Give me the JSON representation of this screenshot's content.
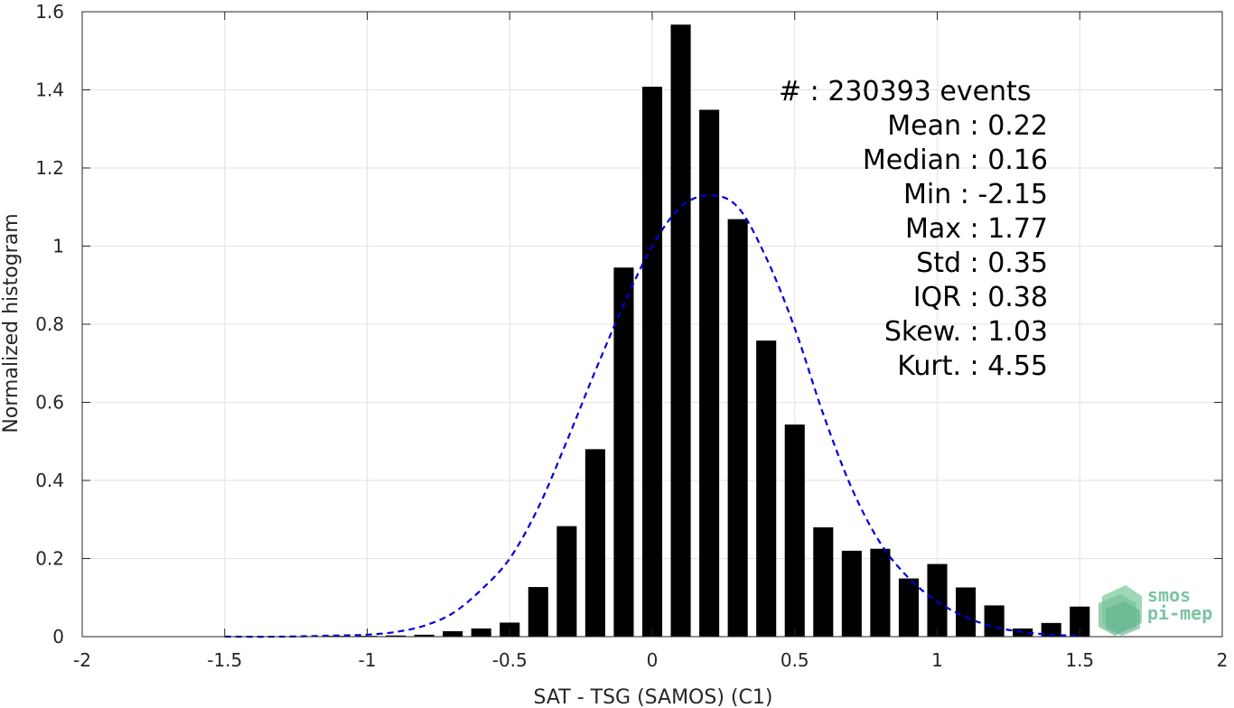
{
  "chart_data": {
    "type": "bar",
    "xlabel": "SAT - TSG (SAMOS) (C1)",
    "ylabel": "Normalized histogram",
    "xlim": [
      -2,
      2
    ],
    "ylim": [
      0,
      1.6
    ],
    "grid": true,
    "xticks": [
      -2,
      -1.5,
      -1,
      -0.5,
      0,
      0.5,
      1,
      1.5,
      2
    ],
    "xtick_labels": [
      "-2",
      "-1.5",
      "-1",
      "-0.5",
      "0",
      "0.5",
      "1",
      "1.5",
      "2"
    ],
    "yticks": [
      0,
      0.2,
      0.4,
      0.6,
      0.8,
      1,
      1.2,
      1.4,
      1.6
    ],
    "ytick_labels": [
      "0",
      "0.2",
      "0.4",
      "0.6",
      "0.8",
      "1",
      "1.2",
      "1.4",
      "1.6"
    ],
    "bar_color": "#000000",
    "bar_width": 0.07,
    "series": [
      {
        "type": "bar",
        "x": [
          -1.5,
          -1.4,
          -1.3,
          -1.2,
          -1.1,
          -1.0,
          -0.9,
          -0.8,
          -0.7,
          -0.6,
          -0.5,
          -0.4,
          -0.3,
          -0.2,
          -0.1,
          0.0,
          0.1,
          0.2,
          0.3,
          0.4,
          0.5,
          0.6,
          0.7,
          0.8,
          0.9,
          1.0,
          1.1,
          1.2,
          1.3,
          1.4,
          1.5
        ],
        "values": [
          0.001,
          0.001,
          0.001,
          0.001,
          0.002,
          0.002,
          0.003,
          0.005,
          0.014,
          0.021,
          0.036,
          0.127,
          0.283,
          0.48,
          0.945,
          1.408,
          1.567,
          1.349,
          1.069,
          0.758,
          0.543,
          0.28,
          0.22,
          0.225,
          0.149,
          0.186,
          0.126,
          0.08,
          0.021,
          0.035,
          0.077
        ]
      },
      {
        "type": "line",
        "style": "dashed",
        "color": "#0000dd",
        "x": [
          -1.5,
          -1.3,
          -1.1,
          -1.0,
          -0.9,
          -0.8,
          -0.7,
          -0.6,
          -0.5,
          -0.4,
          -0.3,
          -0.2,
          -0.1,
          0.0,
          0.1,
          0.2,
          0.3,
          0.4,
          0.5,
          0.6,
          0.7,
          0.8,
          0.9,
          1.0,
          1.1,
          1.2,
          1.3,
          1.4,
          1.5
        ],
        "values": [
          0.0,
          0.0,
          0.003,
          0.005,
          0.012,
          0.028,
          0.06,
          0.12,
          0.2,
          0.33,
          0.5,
          0.68,
          0.85,
          1.0,
          1.1,
          1.13,
          1.1,
          0.97,
          0.79,
          0.57,
          0.38,
          0.24,
          0.15,
          0.09,
          0.05,
          0.025,
          0.012,
          0.005,
          0.002
        ]
      }
    ],
    "stats_lines": [
      "#  : 230393 events",
      "Mean : 0.22",
      "Median : 0.16",
      "Min : -2.15",
      "Max : 1.77",
      "Std : 0.35",
      "IQR : 0.38",
      "Skew. : 1.03",
      "Kurt. : 4.55"
    ]
  },
  "logo": {
    "line1": "smos",
    "line2": "pi-mep",
    "color": "#7cc4a0"
  }
}
